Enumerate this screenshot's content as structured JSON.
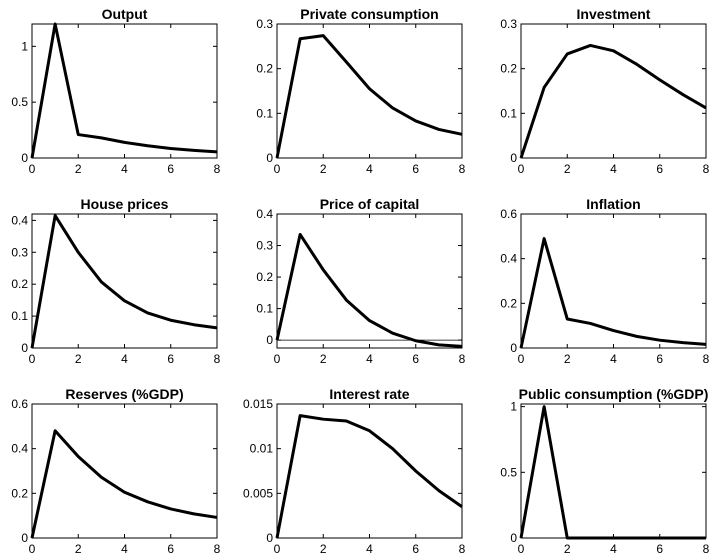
{
  "chart_data": [
    {
      "type": "line",
      "title": "Output",
      "x": [
        0,
        1,
        2,
        3,
        4,
        5,
        6,
        7,
        8
      ],
      "series": [
        {
          "values": [
            0,
            1.2,
            0.21,
            0.18,
            0.14,
            0.11,
            0.085,
            0.068,
            0.055
          ]
        }
      ],
      "xlim": [
        0,
        8
      ],
      "ylim": [
        0,
        1.2
      ],
      "xticks": [
        0,
        2,
        4,
        6,
        8
      ],
      "yticks": [
        0,
        0.5,
        1
      ],
      "xtick_labels": [
        "0",
        "2",
        "4",
        "6",
        "8"
      ],
      "ytick_labels": [
        "0",
        "0.5",
        "1"
      ],
      "zero_line": false
    },
    {
      "type": "line",
      "title": "Private consumption",
      "x": [
        0,
        1,
        2,
        3,
        4,
        5,
        6,
        7,
        8
      ],
      "series": [
        {
          "values": [
            0,
            0.267,
            0.274,
            0.215,
            0.155,
            0.112,
            0.083,
            0.064,
            0.053
          ]
        }
      ],
      "xlim": [
        0,
        8
      ],
      "ylim": [
        0,
        0.3
      ],
      "xticks": [
        0,
        2,
        4,
        6,
        8
      ],
      "yticks": [
        0,
        0.1,
        0.2,
        0.3
      ],
      "xtick_labels": [
        "0",
        "2",
        "4",
        "6",
        "8"
      ],
      "ytick_labels": [
        "0",
        "0.1",
        "0.2",
        "0.3"
      ],
      "zero_line": false
    },
    {
      "type": "line",
      "title": "Investment",
      "x": [
        0,
        1,
        2,
        3,
        4,
        5,
        6,
        7,
        8
      ],
      "series": [
        {
          "values": [
            0,
            0.158,
            0.233,
            0.252,
            0.24,
            0.21,
            0.175,
            0.142,
            0.112
          ]
        }
      ],
      "xlim": [
        0,
        8
      ],
      "ylim": [
        0,
        0.3
      ],
      "xticks": [
        0,
        2,
        4,
        6,
        8
      ],
      "yticks": [
        0,
        0.1,
        0.2,
        0.3
      ],
      "xtick_labels": [
        "0",
        "2",
        "4",
        "6",
        "8"
      ],
      "ytick_labels": [
        "0",
        "0.1",
        "0.2",
        "0.3"
      ],
      "zero_line": false
    },
    {
      "type": "line",
      "title": "House prices",
      "x": [
        0,
        1,
        2,
        3,
        4,
        5,
        6,
        7,
        8
      ],
      "series": [
        {
          "values": [
            0,
            0.415,
            0.3,
            0.207,
            0.148,
            0.11,
            0.087,
            0.073,
            0.063
          ]
        }
      ],
      "xlim": [
        0,
        8
      ],
      "ylim": [
        0,
        0.42
      ],
      "xticks": [
        0,
        2,
        4,
        6,
        8
      ],
      "yticks": [
        0,
        0.1,
        0.2,
        0.3,
        0.4
      ],
      "xtick_labels": [
        "0",
        "2",
        "4",
        "6",
        "8"
      ],
      "ytick_labels": [
        "0",
        "0.1",
        "0.2",
        "0.3",
        "0.4"
      ],
      "zero_line": false
    },
    {
      "type": "line",
      "title": "Price of capital",
      "x": [
        0,
        1,
        2,
        3,
        4,
        5,
        6,
        7,
        8
      ],
      "series": [
        {
          "values": [
            0,
            0.335,
            0.223,
            0.127,
            0.062,
            0.022,
            -0.002,
            -0.015,
            -0.02
          ]
        }
      ],
      "xlim": [
        0,
        8
      ],
      "ylim": [
        -0.025,
        0.4
      ],
      "xticks": [
        0,
        2,
        4,
        6,
        8
      ],
      "yticks": [
        0,
        0.1,
        0.2,
        0.3,
        0.4
      ],
      "xtick_labels": [
        "0",
        "2",
        "4",
        "6",
        "8"
      ],
      "ytick_labels": [
        "0",
        "0.1",
        "0.2",
        "0.3",
        "0.4"
      ],
      "zero_line": true
    },
    {
      "type": "line",
      "title": "Inflation",
      "x": [
        0,
        1,
        2,
        3,
        4,
        5,
        6,
        7,
        8
      ],
      "series": [
        {
          "values": [
            0,
            0.49,
            0.13,
            0.11,
            0.078,
            0.052,
            0.035,
            0.024,
            0.016
          ]
        }
      ],
      "xlim": [
        0,
        8
      ],
      "ylim": [
        0,
        0.6
      ],
      "xticks": [
        0,
        2,
        4,
        6,
        8
      ],
      "yticks": [
        0,
        0.2,
        0.4,
        0.6
      ],
      "xtick_labels": [
        "0",
        "2",
        "4",
        "6",
        "8"
      ],
      "ytick_labels": [
        "0",
        "0.2",
        "0.4",
        "0.6"
      ],
      "zero_line": false
    },
    {
      "type": "line",
      "title": "Reserves (%GDP)",
      "x": [
        0,
        1,
        2,
        3,
        4,
        5,
        6,
        7,
        8
      ],
      "series": [
        {
          "values": [
            0,
            0.48,
            0.365,
            0.272,
            0.205,
            0.162,
            0.13,
            0.108,
            0.092
          ]
        }
      ],
      "xlim": [
        0,
        8
      ],
      "ylim": [
        0,
        0.6
      ],
      "xticks": [
        0,
        2,
        4,
        6,
        8
      ],
      "yticks": [
        0,
        0.2,
        0.4,
        0.6
      ],
      "xtick_labels": [
        "0",
        "2",
        "4",
        "6",
        "8"
      ],
      "ytick_labels": [
        "0",
        "0.2",
        "0.4",
        "0.6"
      ],
      "zero_line": false
    },
    {
      "type": "line",
      "title": "Interest rate",
      "x": [
        0,
        1,
        2,
        3,
        4,
        5,
        6,
        7,
        8
      ],
      "series": [
        {
          "values": [
            0,
            0.0137,
            0.0133,
            0.0131,
            0.012,
            0.01,
            0.0075,
            0.0053,
            0.0035
          ]
        }
      ],
      "xlim": [
        0,
        8
      ],
      "ylim": [
        0,
        0.015
      ],
      "xticks": [
        0,
        2,
        4,
        6,
        8
      ],
      "yticks": [
        0,
        0.005,
        0.01,
        0.015
      ],
      "xtick_labels": [
        "0",
        "2",
        "4",
        "6",
        "8"
      ],
      "ytick_labels": [
        "0",
        "0.005",
        "0.01",
        "0.015"
      ],
      "zero_line": false
    },
    {
      "type": "line",
      "title": "Public consumption (%GDP)",
      "x": [
        0,
        1,
        2,
        3,
        4,
        5,
        6,
        7,
        8
      ],
      "series": [
        {
          "values": [
            0,
            1,
            0,
            0,
            0,
            0,
            0,
            0,
            0
          ]
        }
      ],
      "xlim": [
        0,
        8
      ],
      "ylim": [
        0,
        1.02
      ],
      "xticks": [
        0,
        2,
        4,
        6,
        8
      ],
      "yticks": [
        0,
        0.5,
        1
      ],
      "xtick_labels": [
        "0",
        "2",
        "4",
        "6",
        "8"
      ],
      "ytick_labels": [
        "0",
        "0.5",
        "1"
      ],
      "zero_line": false
    }
  ]
}
